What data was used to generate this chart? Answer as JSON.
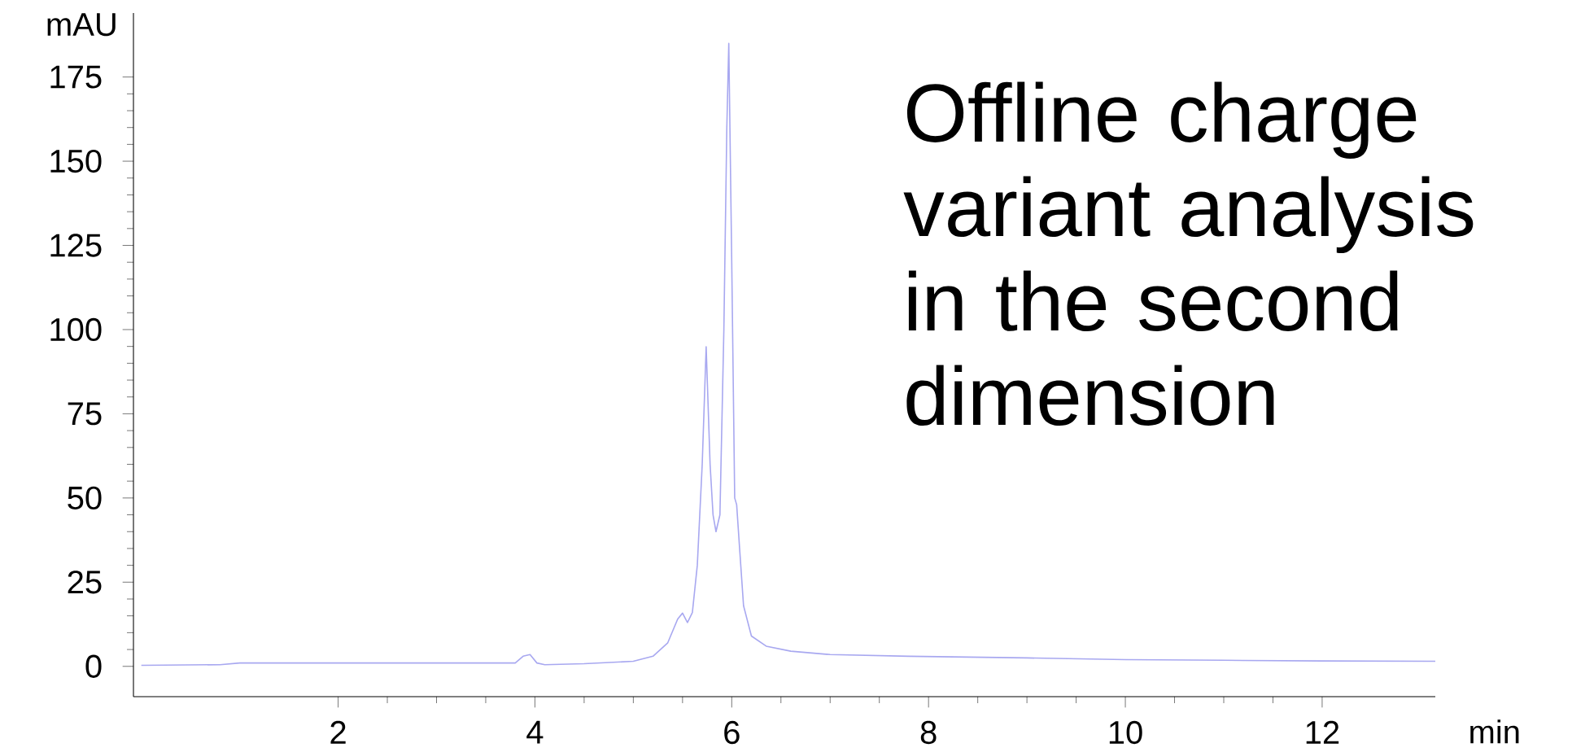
{
  "chart_data": {
    "type": "line",
    "xlabel": "min",
    "ylabel": "mAU",
    "annotations": [
      "Offline charge variant analysis in the second dimension"
    ],
    "xlim": [
      -0.08,
      13.15
    ],
    "ylim": [
      -9,
      194
    ],
    "xticks": [
      2,
      4,
      6,
      8,
      10,
      12
    ],
    "yticks": [
      0,
      25,
      50,
      75,
      100,
      125,
      150,
      175
    ],
    "x": [
      0,
      0.8,
      1,
      2,
      3,
      3.8,
      3.88,
      3.95,
      4.02,
      4.1,
      4.5,
      5.0,
      5.2,
      5.35,
      5.45,
      5.5,
      5.55,
      5.6,
      5.65,
      5.7,
      5.74,
      5.78,
      5.81,
      5.84,
      5.88,
      5.92,
      5.95,
      5.97,
      6.0,
      6.03,
      6.05,
      6.08,
      6.12,
      6.2,
      6.35,
      6.6,
      7,
      7.8,
      9,
      10,
      11,
      12,
      13.15
    ],
    "series": [
      {
        "color": "#a8a8f0",
        "values": [
          0.3,
          0.5,
          1,
          1,
          1,
          1,
          3,
          3.5,
          1,
          0.5,
          0.8,
          1.5,
          3,
          7,
          14,
          15.8,
          13,
          16,
          30,
          60,
          94.9,
          60,
          45,
          40,
          45,
          100,
          160,
          185,
          120,
          50,
          48,
          35,
          18,
          9,
          6,
          4.5,
          3.5,
          3,
          2.5,
          2,
          1.8,
          1.6,
          1.5
        ]
      }
    ]
  }
}
